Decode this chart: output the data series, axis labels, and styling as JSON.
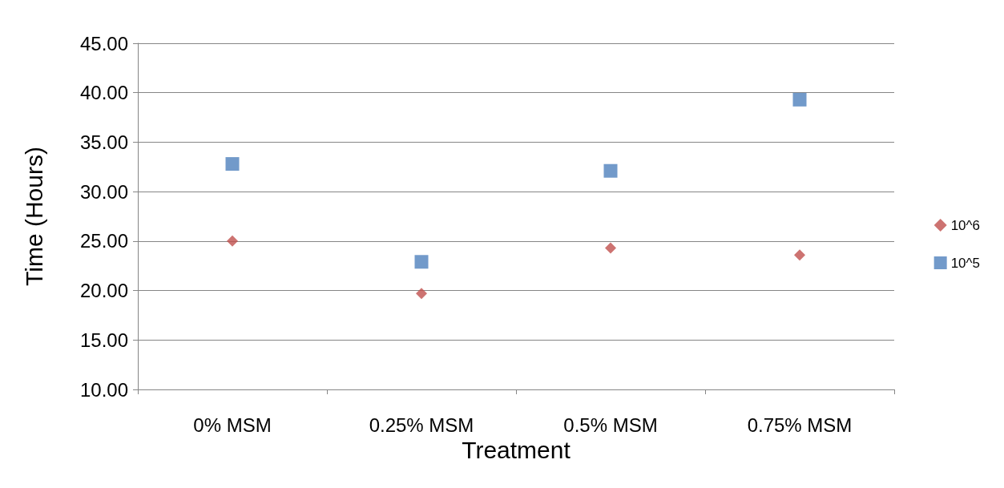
{
  "chart_data": {
    "type": "scatter",
    "xlabel": "Treatment",
    "ylabel": "Time (Hours)",
    "categories": [
      "0% MSM",
      "0.25% MSM",
      "0.5% MSM",
      "0.75% MSM"
    ],
    "series": [
      {
        "name": "10^6",
        "color": "#c0504d",
        "marker": "diamond",
        "values": [
          25.0,
          19.7,
          24.3,
          23.6
        ]
      },
      {
        "name": "10^5",
        "color": "#4f81bd",
        "marker": "square",
        "values": [
          32.8,
          22.9,
          32.1,
          39.3
        ]
      }
    ],
    "ylim": [
      10,
      45
    ],
    "yticks": [
      {
        "value": 10,
        "label": "10.00"
      },
      {
        "value": 15,
        "label": "15.00"
      },
      {
        "value": 20,
        "label": "20.00"
      },
      {
        "value": 25,
        "label": "25.00"
      },
      {
        "value": 30,
        "label": "30.00"
      },
      {
        "value": 35,
        "label": "35.00"
      },
      {
        "value": 40,
        "label": "40.00"
      },
      {
        "value": 45,
        "label": "45.00"
      }
    ],
    "grid": "y",
    "legend": "right"
  }
}
